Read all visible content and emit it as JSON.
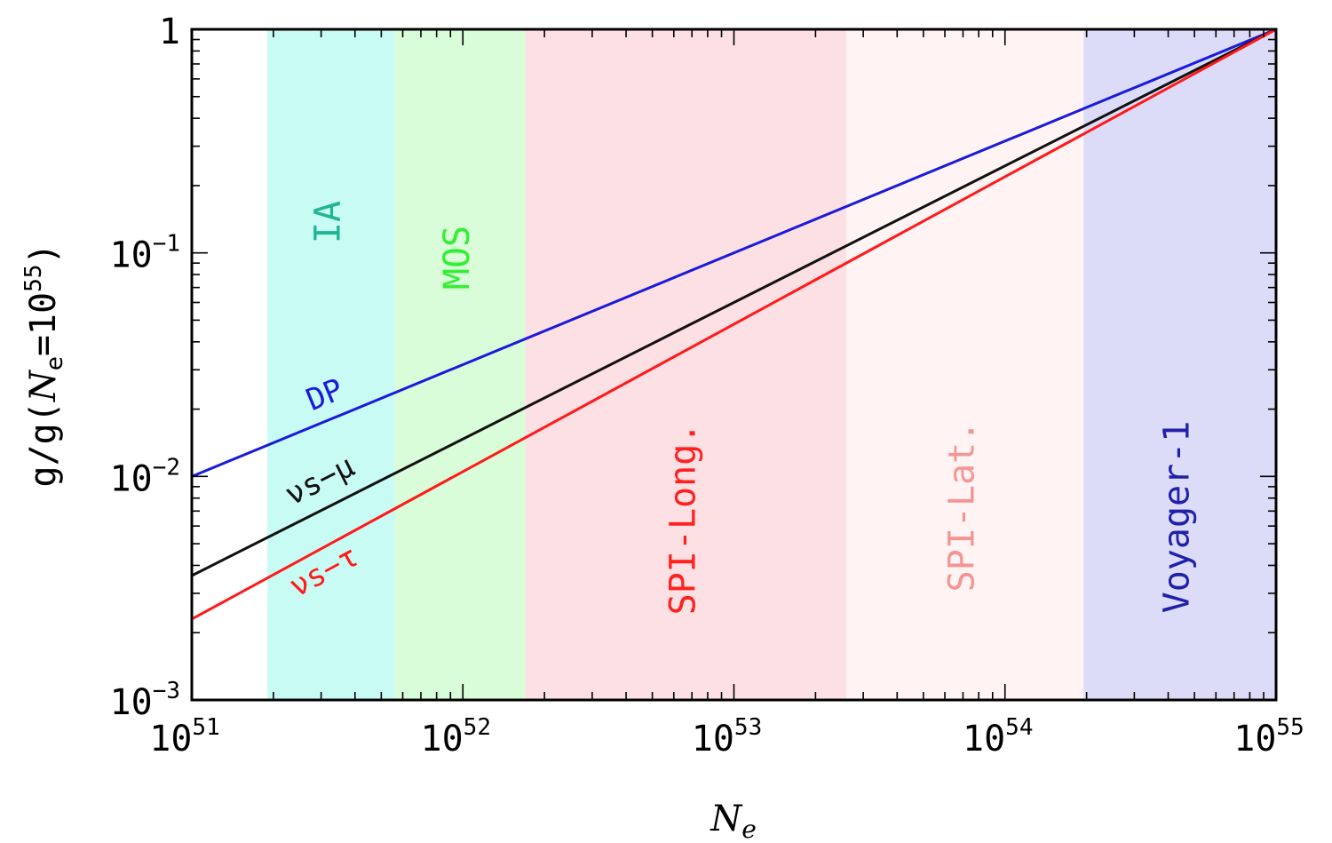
{
  "chart_data": {
    "type": "line",
    "xlabel": "N",
    "xlabel_sub": "e",
    "ylabel": {
      "prefix": "g/g(",
      "n": "N",
      "n_sub": "e",
      "eq": "=10",
      "exp": "55",
      "suffix": ")"
    },
    "x_scale": "log",
    "y_scale": "log",
    "xlim": [
      1e+51,
      1e+55
    ],
    "ylim": [
      0.001,
      1
    ],
    "x_ticks": [
      {
        "value": 1e+51,
        "base": "10",
        "exp": "51"
      },
      {
        "value": 1e+52,
        "base": "10",
        "exp": "52"
      },
      {
        "value": 1e+53,
        "base": "10",
        "exp": "53"
      },
      {
        "value": 1e+54,
        "base": "10",
        "exp": "54"
      },
      {
        "value": 1e+55,
        "base": "10",
        "exp": "55"
      }
    ],
    "y_ticks": [
      {
        "value": 0.001,
        "base": "10",
        "exp": "−3"
      },
      {
        "value": 0.01,
        "base": "10",
        "exp": "−2"
      },
      {
        "value": 0.1,
        "base": "10",
        "exp": "−1"
      },
      {
        "value": 1,
        "base": "1",
        "exp": ""
      }
    ],
    "grid": false,
    "bands": [
      {
        "label": "IA",
        "x_start": 1.9e+51,
        "x_end": 5.6e+51,
        "fill": "#c9fbf5",
        "text_color": "#1fb592"
      },
      {
        "label": "MOS",
        "x_start": 5.6e+51,
        "x_end": 1.7e+52,
        "fill": "#d9fdd8",
        "text_color": "#33ee33"
      },
      {
        "label": "SPI-Long.",
        "x_start": 1.7e+52,
        "x_end": 2.6e+53,
        "fill": "#fde0e3",
        "text_color": "#ff2020"
      },
      {
        "label": "SPI-Lat.",
        "x_start": 2.6e+53,
        "x_end": 1.95e+54,
        "fill": "#fff4f3",
        "text_color": "#f59494"
      },
      {
        "label": "Voyager-1",
        "x_start": 1.95e+54,
        "x_end": 1e+55,
        "fill": "#dcdcf8",
        "text_color": "#2020a8"
      }
    ],
    "series": [
      {
        "name": "DP",
        "color": "#1a1adb",
        "x": [
          1e+51,
          1e+55
        ],
        "y": [
          0.01,
          1
        ]
      },
      {
        "name": "νs−μ",
        "color": "#111111",
        "x": [
          1e+51,
          1e+55
        ],
        "y": [
          0.0036,
          1
        ]
      },
      {
        "name": "νs−τ",
        "color": "#ff1a1a",
        "x": [
          1e+51,
          1e+55
        ],
        "y": [
          0.0023,
          1
        ]
      }
    ],
    "line_labels": [
      {
        "series": "DP",
        "text": "DP",
        "color": "#1a1adb"
      },
      {
        "series": "νs−μ",
        "text": "νs−μ",
        "color": "#111111"
      },
      {
        "series": "νs−τ",
        "text": "νs−τ",
        "color": "#ff1a1a"
      }
    ]
  }
}
